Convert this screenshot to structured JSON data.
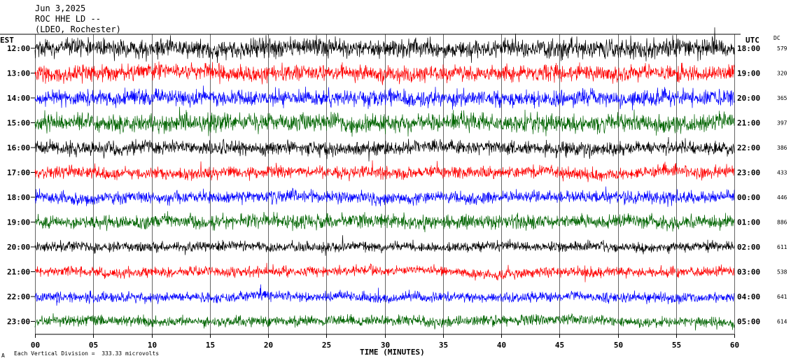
{
  "header": {
    "date": "Jun 3,2025",
    "station": "ROC HHE LD --",
    "location": "(LDEO, Rochester)"
  },
  "labels": {
    "left_zone": "EST",
    "right_zone": "UTC",
    "dc": "DC",
    "xlabel": "TIME (MINUTES)",
    "scale_note": "Each Vertical Division =  333.33 microvolts",
    "corner_mark": "A"
  },
  "colors": {
    "trace_cycle": [
      "#000000",
      "#ff0000",
      "#0000ff",
      "#006400"
    ],
    "grid": "#000000",
    "background": "#ffffff"
  },
  "chart_data": {
    "type": "line",
    "title": "",
    "xlabel": "TIME (MINUTES)",
    "ylabel": "",
    "xlim": [
      0,
      60
    ],
    "x_ticks": [
      "00",
      "05",
      "10",
      "15",
      "20",
      "25",
      "30",
      "35",
      "40",
      "45",
      "50",
      "55",
      "60"
    ],
    "rows": [
      {
        "est": "12:00",
        "utc": "18:00",
        "dc": "579"
      },
      {
        "est": "13:00",
        "utc": "19:00",
        "dc": "320"
      },
      {
        "est": "14:00",
        "utc": "20:00",
        "dc": "365"
      },
      {
        "est": "15:00",
        "utc": "21:00",
        "dc": "397"
      },
      {
        "est": "16:00",
        "utc": "22:00",
        "dc": "386"
      },
      {
        "est": "17:00",
        "utc": "23:00",
        "dc": "433"
      },
      {
        "est": "18:00",
        "utc": "00:00",
        "dc": "446"
      },
      {
        "est": "19:00",
        "utc": "01:00",
        "dc": "886"
      },
      {
        "est": "20:00",
        "utc": "02:00",
        "dc": "611"
      },
      {
        "est": "21:00",
        "utc": "03:00",
        "dc": "538"
      },
      {
        "est": "22:00",
        "utc": "04:00",
        "dc": "641"
      },
      {
        "est": "23:00",
        "utc": "05:00",
        "dc": "614"
      }
    ],
    "grid": true
  }
}
